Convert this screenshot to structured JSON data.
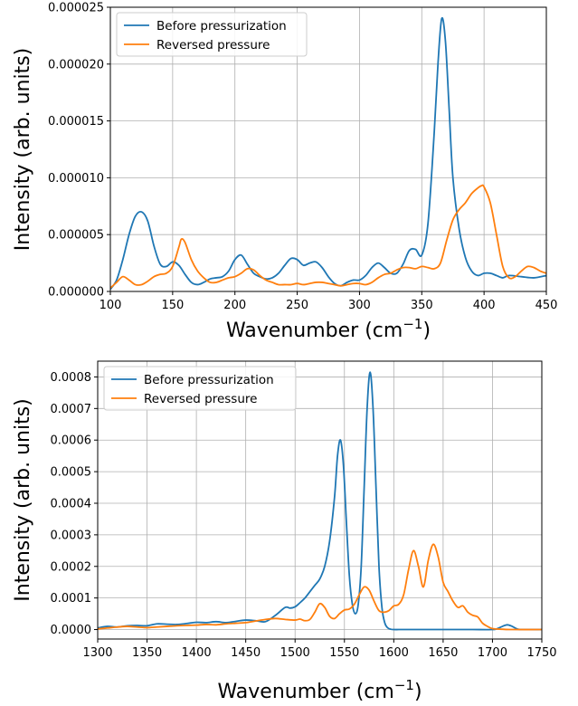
{
  "chart_data": [
    {
      "type": "line",
      "xlabel": "Wavenumber (cm",
      "xlabel_sup": "−1",
      "xlabel_close": ")",
      "ylabel": "Intensity (arb. units)",
      "xlim": [
        100,
        450
      ],
      "ylim": [
        0,
        2.5e-05
      ],
      "xticks": [
        100,
        150,
        200,
        250,
        300,
        350,
        400,
        450
      ],
      "xtick_labels": [
        "100",
        "150",
        "200",
        "250",
        "300",
        "350",
        "400",
        "450"
      ],
      "yticks": [
        0,
        5e-06,
        1e-05,
        1.5e-05,
        2e-05,
        2.5e-05
      ],
      "ytick_labels": [
        "0.000000",
        "0.000005",
        "0.000010",
        "0.000015",
        "0.000020",
        "0.000025"
      ],
      "grid": true,
      "legend_position": "top-left",
      "series": [
        {
          "name": "Before pressurization",
          "color": "#1f77b4",
          "x": [
            100,
            105,
            110,
            115,
            120,
            125,
            130,
            135,
            140,
            145,
            150,
            155,
            160,
            165,
            170,
            175,
            180,
            185,
            190,
            195,
            200,
            205,
            210,
            215,
            220,
            225,
            230,
            235,
            240,
            245,
            250,
            255,
            260,
            265,
            270,
            275,
            280,
            285,
            290,
            295,
            300,
            305,
            310,
            315,
            320,
            325,
            330,
            335,
            340,
            345,
            350,
            355,
            360,
            363,
            366,
            369,
            372,
            375,
            380,
            385,
            390,
            395,
            400,
            405,
            410,
            415,
            420,
            430,
            440,
            450
          ],
          "y": [
            2e-07,
            1e-06,
            2.8e-06,
            5e-06,
            6.6e-06,
            7e-06,
            6.2e-06,
            4e-06,
            2.4e-06,
            2.2e-06,
            2.6e-06,
            2.3e-06,
            1.5e-06,
            8e-07,
            6e-07,
            8e-07,
            1.1e-06,
            1.2e-06,
            1.3e-06,
            1.8e-06,
            2.8e-06,
            3.2e-06,
            2.4e-06,
            1.6e-06,
            1.3e-06,
            1.1e-06,
            1.2e-06,
            1.6e-06,
            2.3e-06,
            2.9e-06,
            2.8e-06,
            2.3e-06,
            2.5e-06,
            2.6e-06,
            2.1e-06,
            1.3e-06,
            7e-07,
            5e-07,
            8e-07,
            1e-06,
            1e-06,
            1.4e-06,
            2.1e-06,
            2.5e-06,
            2.1e-06,
            1.6e-06,
            1.6e-06,
            2.4e-06,
            3.6e-06,
            3.7e-06,
            3.2e-06,
            6e-06,
            1.4e-05,
            2e-05,
            2.4e-05,
            2.2e-05,
            1.6e-05,
            1e-05,
            5.5e-06,
            3e-06,
            1.8e-06,
            1.4e-06,
            1.6e-06,
            1.6e-06,
            1.4e-06,
            1.2e-06,
            1.4e-06,
            1.3e-06,
            1.2e-06,
            1.4e-06
          ]
        },
        {
          "name": "Reversed pressure",
          "color": "#ff7f0e",
          "x": [
            100,
            105,
            110,
            115,
            120,
            125,
            130,
            135,
            140,
            145,
            150,
            155,
            157,
            160,
            165,
            170,
            175,
            180,
            185,
            190,
            195,
            200,
            205,
            210,
            215,
            220,
            225,
            230,
            235,
            240,
            245,
            250,
            255,
            260,
            265,
            270,
            275,
            280,
            285,
            290,
            295,
            300,
            305,
            310,
            315,
            320,
            325,
            330,
            335,
            340,
            345,
            350,
            355,
            360,
            365,
            370,
            375,
            380,
            385,
            390,
            395,
            398,
            400,
            405,
            410,
            415,
            420,
            425,
            430,
            435,
            440,
            445,
            450
          ],
          "y": [
            3e-07,
            8e-07,
            1.3e-06,
            1e-06,
            6e-07,
            6e-07,
            9e-07,
            1.3e-06,
            1.5e-06,
            1.6e-06,
            2.2e-06,
            3.9e-06,
            4.6e-06,
            4.3e-06,
            2.8e-06,
            1.8e-06,
            1.2e-06,
            8e-07,
            8e-07,
            1e-06,
            1.2e-06,
            1.3e-06,
            1.6e-06,
            2e-06,
            1.9e-06,
            1.4e-06,
            1e-06,
            8e-07,
            6e-07,
            6e-07,
            6e-07,
            7e-07,
            6e-07,
            7e-07,
            8e-07,
            8e-07,
            7e-07,
            6e-07,
            5e-07,
            6e-07,
            7e-07,
            7e-07,
            6e-07,
            8e-07,
            1.2e-06,
            1.5e-06,
            1.6e-06,
            1.9e-06,
            2.1e-06,
            2.1e-06,
            2e-06,
            2.2e-06,
            2.1e-06,
            2e-06,
            2.5e-06,
            4.5e-06,
            6.3e-06,
            7.2e-06,
            7.8e-06,
            8.6e-06,
            9.1e-06,
            9.3e-06,
            9.2e-06,
            7.8e-06,
            5e-06,
            2.2e-06,
            1.2e-06,
            1.3e-06,
            1.8e-06,
            2.2e-06,
            2.1e-06,
            1.8e-06,
            1.6e-06
          ]
        }
      ]
    },
    {
      "type": "line",
      "xlabel": "Wavenumber (cm",
      "xlabel_sup": "−1",
      "xlabel_close": ")",
      "ylabel": "Intensity (arb. units)",
      "xlim": [
        1300,
        1750
      ],
      "ylim": [
        -3e-05,
        0.00085
      ],
      "xticks": [
        1300,
        1350,
        1400,
        1450,
        1500,
        1550,
        1600,
        1650,
        1700,
        1750
      ],
      "xtick_labels": [
        "1300",
        "1350",
        "1400",
        "1450",
        "1500",
        "1550",
        "1600",
        "1650",
        "1700",
        "1750"
      ],
      "yticks": [
        0,
        0.0001,
        0.0002,
        0.0003,
        0.0004,
        0.0005,
        0.0006,
        0.0007,
        0.0008
      ],
      "ytick_labels": [
        "0.0000",
        "0.0001",
        "0.0002",
        "0.0003",
        "0.0004",
        "0.0005",
        "0.0006",
        "0.0007",
        "0.0008"
      ],
      "grid": true,
      "legend_position": "top-left",
      "series": [
        {
          "name": "Before pressurization",
          "color": "#1f77b4",
          "x": [
            1300,
            1310,
            1320,
            1330,
            1340,
            1350,
            1360,
            1370,
            1380,
            1390,
            1400,
            1410,
            1420,
            1430,
            1440,
            1450,
            1460,
            1470,
            1480,
            1490,
            1495,
            1500,
            1505,
            1510,
            1515,
            1520,
            1525,
            1530,
            1535,
            1540,
            1543,
            1546,
            1549,
            1552,
            1555,
            1558,
            1561,
            1564,
            1567,
            1570,
            1573,
            1576,
            1579,
            1582,
            1585,
            1588,
            1591,
            1594,
            1597,
            1600,
            1605,
            1610,
            1620,
            1640,
            1660,
            1680,
            1700,
            1705,
            1710,
            1715,
            1720,
            1725,
            1730,
            1750
          ],
          "y": [
            5e-06,
            1e-05,
            8e-06,
            1.2e-05,
            1.3e-05,
            1.2e-05,
            1.8e-05,
            1.7e-05,
            1.6e-05,
            1.9e-05,
            2.3e-05,
            2.2e-05,
            2.5e-05,
            2.2e-05,
            2.6e-05,
            3e-05,
            2.8e-05,
            2.5e-05,
            4.5e-05,
            7e-05,
            6.8e-05,
            7.2e-05,
            8.5e-05,
            0.0001,
            0.00012,
            0.00014,
            0.00016,
            0.0002,
            0.00028,
            0.00042,
            0.00055,
            0.0006,
            0.00052,
            0.00034,
            0.00017,
            8e-05,
            5e-05,
            8e-05,
            0.0002,
            0.00045,
            0.0007,
            0.000815,
            0.0007,
            0.00045,
            0.0002,
            7e-05,
            2e-05,
            5e-06,
            1e-06,
            0,
            0,
            0,
            0,
            0,
            0,
            0,
            0,
            3e-06,
            1e-05,
            1.5e-05,
            1e-05,
            2e-06,
            0,
            0
          ]
        },
        {
          "name": "Reversed pressure",
          "color": "#ff7f0e",
          "x": [
            1300,
            1310,
            1320,
            1330,
            1340,
            1350,
            1360,
            1370,
            1380,
            1390,
            1400,
            1410,
            1420,
            1430,
            1440,
            1450,
            1460,
            1470,
            1480,
            1490,
            1500,
            1505,
            1510,
            1515,
            1520,
            1525,
            1530,
            1535,
            1540,
            1545,
            1550,
            1555,
            1560,
            1565,
            1570,
            1575,
            1580,
            1585,
            1590,
            1595,
            1600,
            1605,
            1610,
            1615,
            1620,
            1625,
            1630,
            1635,
            1640,
            1645,
            1650,
            1655,
            1660,
            1665,
            1670,
            1675,
            1680,
            1685,
            1690,
            1695,
            1700,
            1710,
            1720,
            1750
          ],
          "y": [
            2e-06,
            5e-06,
            8e-06,
            1e-05,
            8e-06,
            6e-06,
            8e-06,
            1e-05,
            1.2e-05,
            1.3e-05,
            1.4e-05,
            1.6e-05,
            1.5e-05,
            1.8e-05,
            2e-05,
            2.2e-05,
            2.7e-05,
            3.2e-05,
            3.5e-05,
            3.2e-05,
            3e-05,
            3.3e-05,
            2.8e-05,
            3.2e-05,
            5.5e-05,
            8.2e-05,
            7e-05,
            4.2e-05,
            3.5e-05,
            5e-05,
            6.2e-05,
            6.5e-05,
            8e-05,
            0.00011,
            0.000135,
            0.000125,
            9e-05,
            6e-05,
            5.5e-05,
            6e-05,
            7.5e-05,
            8e-05,
            0.00011,
            0.00019,
            0.00025,
            0.0002,
            0.000135,
            0.00022,
            0.00027,
            0.00023,
            0.00015,
            0.00012,
            9e-05,
            7e-05,
            7.5e-05,
            5.5e-05,
            4.5e-05,
            4e-05,
            2e-05,
            1e-05,
            3e-06,
            1e-06,
            0,
            0
          ]
        }
      ]
    }
  ]
}
